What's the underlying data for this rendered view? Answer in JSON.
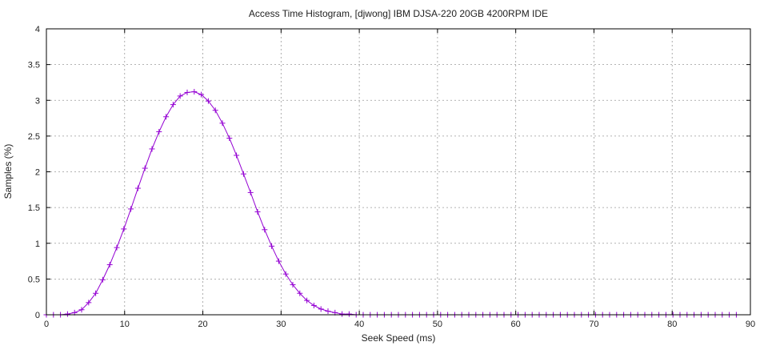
{
  "chart_data": {
    "type": "line",
    "title": "Access Time Histogram, [djwong] IBM DJSA-220 20GB 4200RPM IDE",
    "xlabel": "Seek Speed (ms)",
    "ylabel": "Samples (%)",
    "xlim": [
      0,
      90
    ],
    "ylim": [
      0,
      4
    ],
    "xticks": [
      "0",
      "10",
      "20",
      "30",
      "40",
      "50",
      "60",
      "70",
      "80",
      "90"
    ],
    "yticks": [
      "0",
      "0.5",
      "1",
      "1.5",
      "2",
      "2.5",
      "3",
      "3.5",
      "4"
    ],
    "grid": true,
    "series_color": "#9400d3",
    "series": [
      {
        "marker": "+",
        "x": [
          0,
          0.9,
          1.8,
          2.7,
          3.6,
          4.5,
          5.4,
          6.3,
          7.2,
          8.1,
          9.0,
          9.9,
          10.8,
          11.7,
          12.6,
          13.5,
          14.4,
          15.3,
          16.2,
          17.1,
          18.0,
          18.9,
          19.8,
          20.7,
          21.6,
          22.5,
          23.4,
          24.3,
          25.2,
          26.1,
          27.0,
          27.9,
          28.8,
          29.7,
          30.6,
          31.5,
          32.4,
          33.3,
          34.2,
          35.1,
          36.0,
          36.9,
          37.8,
          38.7,
          39.6,
          40.5,
          41.4,
          42.3,
          43.2,
          44.1,
          45.0,
          45.9,
          46.8,
          47.7,
          48.6,
          49.5,
          50.4,
          51.3,
          52.2,
          53.1,
          54.0,
          54.9,
          55.8,
          56.7,
          57.6,
          58.5,
          59.4,
          60.3,
          61.2,
          62.1,
          63.0,
          63.9,
          64.8,
          65.7,
          66.6,
          67.5,
          68.4,
          69.3,
          70.2,
          71.1,
          72.0,
          72.9,
          73.8,
          74.7,
          75.6,
          76.5,
          77.4,
          78.3,
          79.2,
          80.1,
          81.0,
          81.9,
          82.8,
          83.7,
          84.6,
          85.5,
          86.4,
          87.3,
          88.2
        ],
        "y": [
          0,
          0,
          0,
          0.01,
          0.03,
          0.07,
          0.17,
          0.3,
          0.49,
          0.7,
          0.94,
          1.2,
          1.48,
          1.77,
          2.05,
          2.32,
          2.56,
          2.77,
          2.94,
          3.06,
          3.11,
          3.12,
          3.08,
          2.99,
          2.86,
          2.68,
          2.47,
          2.23,
          1.97,
          1.71,
          1.44,
          1.19,
          0.96,
          0.75,
          0.57,
          0.42,
          0.3,
          0.2,
          0.13,
          0.08,
          0.05,
          0.03,
          0.01,
          0.01,
          0,
          0,
          0,
          0,
          0,
          0,
          0,
          0,
          0,
          0,
          0,
          0,
          0,
          0,
          0,
          0,
          0,
          0,
          0,
          0,
          0,
          0,
          0,
          0,
          0,
          0,
          0,
          0,
          0,
          0,
          0,
          0,
          0,
          0,
          0,
          0,
          0,
          0,
          0,
          0,
          0,
          0,
          0,
          0,
          0,
          0,
          0,
          0,
          0,
          0,
          0,
          0,
          0,
          0,
          0
        ]
      }
    ]
  }
}
